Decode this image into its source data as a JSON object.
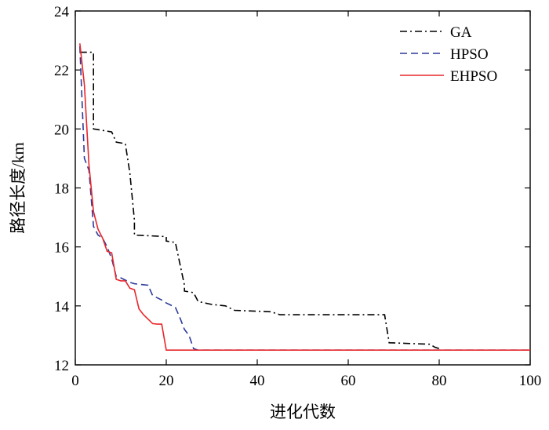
{
  "chart_data": {
    "type": "line",
    "title": "",
    "xlabel": "进化代数",
    "ylabel": "路径长度/km",
    "xlim": [
      0,
      100
    ],
    "ylim": [
      12,
      24
    ],
    "xticks": [
      0,
      20,
      40,
      60,
      80,
      100
    ],
    "yticks": [
      12,
      14,
      16,
      18,
      20,
      22,
      24
    ],
    "grid": false,
    "legend": "top-right",
    "series": [
      {
        "name": "GA",
        "color": "#000000",
        "dash": "dashdot",
        "x": [
          1,
          4,
          4,
          8,
          9,
          11,
          12,
          13,
          13,
          20,
          20,
          22,
          24,
          24,
          26,
          27,
          30,
          33,
          35,
          43,
          45,
          68,
          69,
          78,
          79,
          80
        ],
        "y": [
          22.6,
          22.6,
          20.0,
          19.9,
          19.55,
          19.5,
          18.5,
          16.9,
          16.4,
          16.35,
          16.2,
          16.15,
          14.7,
          14.5,
          14.45,
          14.15,
          14.05,
          14.0,
          13.85,
          13.8,
          13.7,
          13.7,
          12.75,
          12.7,
          12.6,
          12.55
        ]
      },
      {
        "name": "HPSO",
        "color": "#2b3a9a",
        "dash": "dashed",
        "x": [
          1,
          2,
          3,
          4,
          5,
          6,
          7,
          8,
          9,
          10,
          12,
          13,
          16,
          17,
          19,
          20,
          22,
          23,
          24,
          25,
          26,
          27,
          100
        ],
        "y": [
          22.8,
          19.0,
          18.6,
          16.7,
          16.4,
          16.3,
          16.0,
          15.6,
          15.0,
          14.95,
          14.8,
          14.75,
          14.7,
          14.35,
          14.2,
          14.1,
          13.95,
          13.6,
          13.2,
          13.0,
          12.55,
          12.5,
          12.5
        ]
      },
      {
        "name": "EHPSO",
        "color": "#e8262a",
        "dash": "solid",
        "x": [
          1,
          2,
          3,
          4,
          5,
          6,
          7,
          8,
          9,
          10,
          11,
          12,
          13,
          14,
          15,
          16,
          17,
          18,
          19,
          20,
          100
        ],
        "y": [
          22.9,
          21.5,
          18.8,
          17.2,
          16.6,
          16.3,
          15.85,
          15.8,
          14.9,
          14.85,
          14.85,
          14.6,
          14.55,
          13.9,
          13.7,
          13.55,
          13.4,
          13.38,
          13.38,
          12.5,
          12.5
        ]
      }
    ]
  }
}
